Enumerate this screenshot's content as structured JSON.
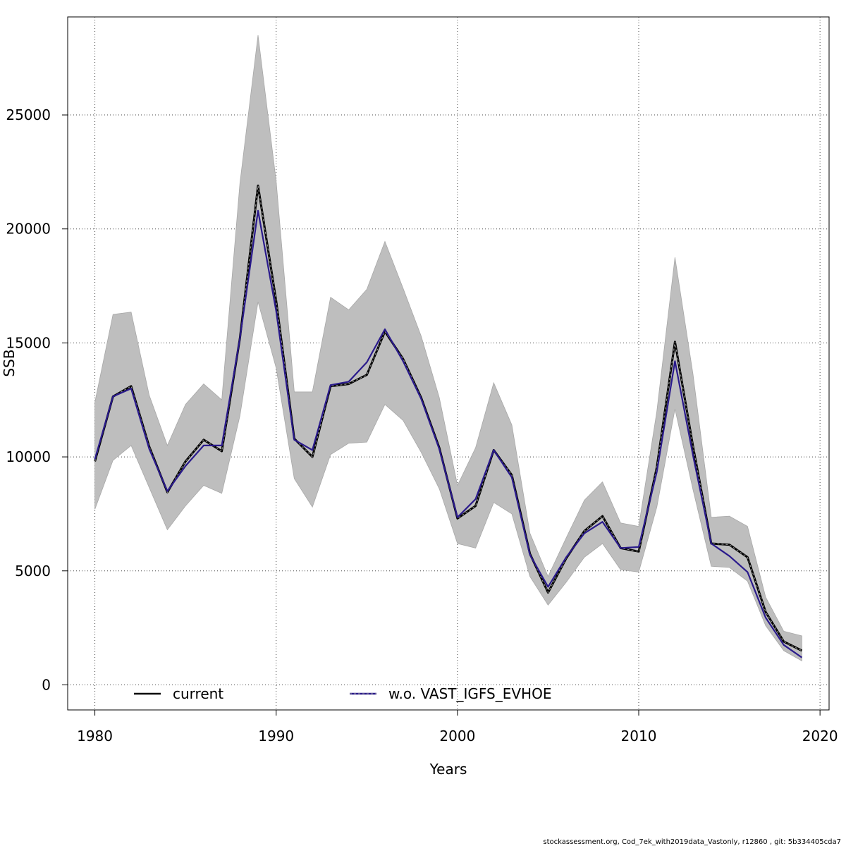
{
  "chart_data": {
    "type": "line",
    "xlabel": "Years",
    "ylabel": "SSB",
    "xlim": [
      1978.5,
      2020.5
    ],
    "ylim": [
      -1100,
      29300
    ],
    "x_ticks": [
      1980,
      1990,
      2000,
      2010,
      2020
    ],
    "y_ticks": [
      0,
      5000,
      10000,
      15000,
      20000,
      25000
    ],
    "grid": true,
    "legend_position": "bottom",
    "x": [
      1980,
      1981,
      1982,
      1983,
      1984,
      1985,
      1986,
      1987,
      1988,
      1989,
      1990,
      1991,
      1992,
      1993,
      1994,
      1995,
      1996,
      1997,
      1998,
      1999,
      2000,
      2001,
      2002,
      2003,
      2004,
      2005,
      2006,
      2007,
      2008,
      2009,
      2010,
      2011,
      2012,
      2013,
      2014,
      2015,
      2016,
      2017,
      2018,
      2019
    ],
    "band": {
      "lower": [
        7700,
        9850,
        10500,
        8650,
        6800,
        7850,
        8750,
        8400,
        11800,
        16800,
        13900,
        9050,
        7800,
        10100,
        10600,
        10650,
        12300,
        11600,
        10200,
        8600,
        6200,
        6000,
        8000,
        7500,
        4750,
        3500,
        4500,
        5600,
        6200,
        5050,
        4950,
        7800,
        12100,
        8550,
        5200,
        5150,
        4550,
        2600,
        1500,
        1050
      ],
      "upper": [
        12400,
        16250,
        16350,
        12700,
        10500,
        12300,
        13200,
        12500,
        22000,
        28500,
        22100,
        12850,
        12850,
        17000,
        16450,
        17350,
        19450,
        17400,
        15300,
        12600,
        8750,
        10400,
        13250,
        11400,
        6650,
        4750,
        6450,
        8100,
        8900,
        7100,
        6950,
        12000,
        18750,
        13600,
        7350,
        7400,
        6950,
        3850,
        2350,
        2150
      ]
    },
    "series": [
      {
        "name": "current",
        "color": "#000000",
        "style": "solid",
        "values": [
          9800,
          12650,
          13100,
          10450,
          8450,
          9800,
          10750,
          10250,
          15200,
          21900,
          16850,
          10800,
          10000,
          13100,
          13200,
          13600,
          15500,
          14300,
          12600,
          10400,
          7300,
          7850,
          10300,
          9200,
          5750,
          4050,
          5550,
          6750,
          7400,
          6000,
          5850,
          9550,
          15050,
          10450,
          6200,
          6150,
          5600,
          3200,
          1900,
          1500
        ]
      },
      {
        "name": "w.o. VAST_IGFS_EVHOE",
        "color": "#2a1a8c",
        "style": "solid",
        "values": [
          9900,
          12650,
          13000,
          10350,
          8500,
          9600,
          10500,
          10500,
          15200,
          20800,
          16400,
          10750,
          10300,
          13150,
          13300,
          14150,
          15600,
          14200,
          12550,
          10350,
          7350,
          8150,
          10300,
          9100,
          5700,
          4300,
          5600,
          6650,
          7150,
          6000,
          6050,
          9350,
          14200,
          10050,
          6200,
          5650,
          4950,
          2950,
          1750,
          1200
        ]
      }
    ]
  },
  "footer_text": "stockassessment.org, Cod_7ek_with2019data_Vastonly, r12860 , git: 5b334405cda7"
}
